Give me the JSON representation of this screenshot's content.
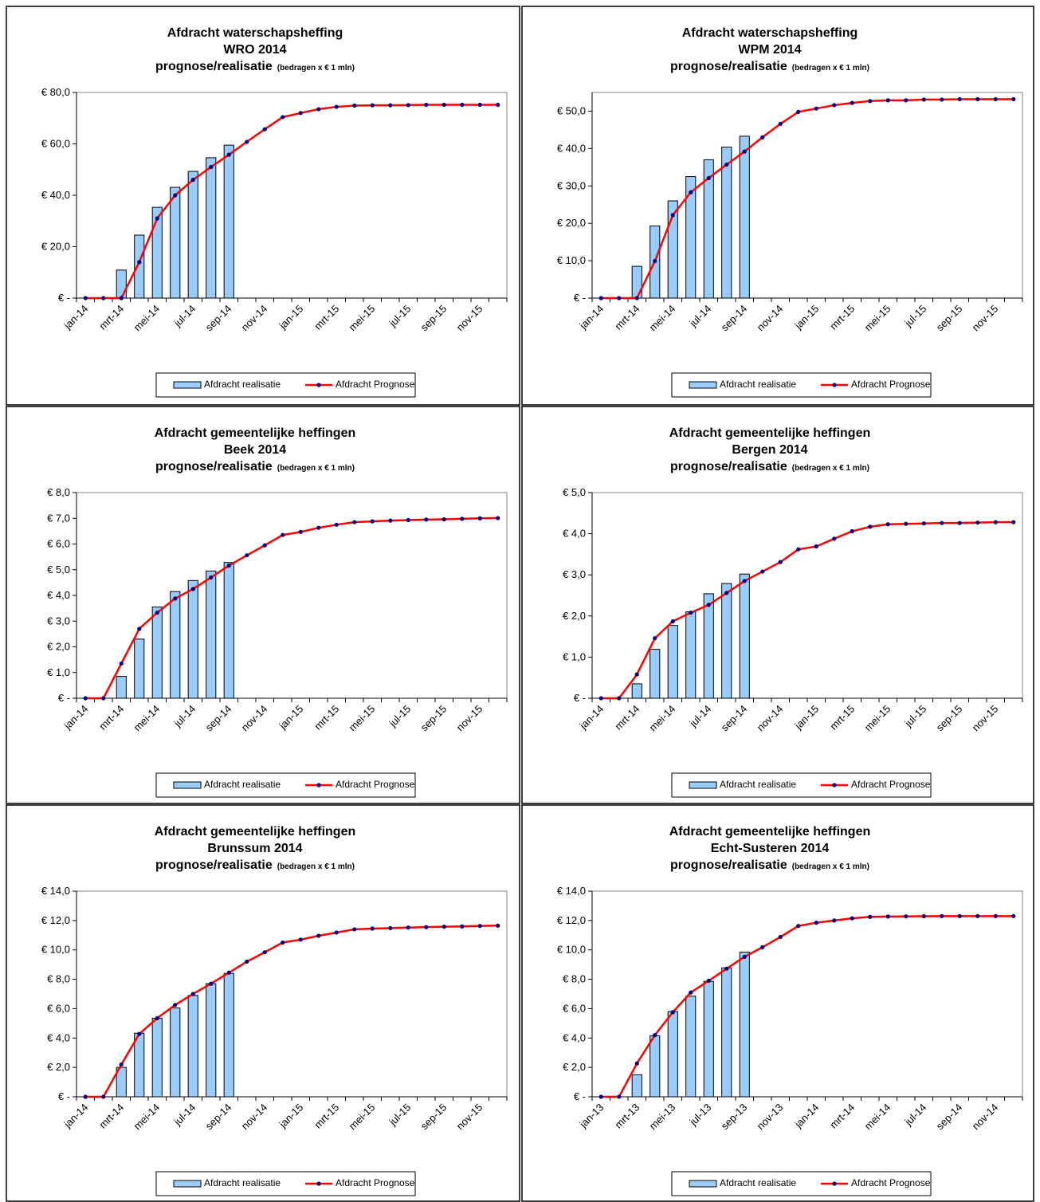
{
  "chart_data": [
    {
      "type": "bar_line",
      "title": [
        "Afdracht waterschapsheffing",
        "WRO 2014",
        "prognose/realisatie"
      ],
      "subtitle": "(bedragen x € 1 mln)",
      "categories": [
        "jan-14",
        null,
        "mrt-14",
        null,
        "mei-14",
        null,
        "jul-14",
        null,
        "sep-14",
        null,
        "nov-14",
        null,
        "jan-15",
        null,
        "mrt-15",
        null,
        "mei-15",
        null,
        "jul-15",
        null,
        "sep-15",
        null,
        "nov-15",
        null
      ],
      "series": [
        {
          "name": "Afdracht realisatie",
          "kind": "bar",
          "color": "#99ccff",
          "values": [
            0,
            0,
            10.9,
            24.5,
            35.3,
            43.1,
            49.3,
            54.6,
            59.5,
            null,
            null,
            null,
            null,
            null,
            null,
            null,
            null,
            null,
            null,
            null,
            null,
            null,
            null,
            null
          ]
        },
        {
          "name": "Afdracht Prognose",
          "kind": "line",
          "color": "#ff0000",
          "marker_color": "#000080",
          "values": [
            0,
            0,
            0,
            14,
            31,
            40,
            46,
            51,
            55.8,
            60.8,
            65.7,
            70.4,
            72,
            73.5,
            74.4,
            74.9,
            75,
            75,
            75.1,
            75.2,
            75.2,
            75.2,
            75.2,
            75.2
          ]
        }
      ],
      "ylim": [
        0,
        80
      ],
      "yticks": [
        {
          "value": 0,
          "label": "€ -"
        },
        {
          "value": 20,
          "label": "€ 20,0"
        },
        {
          "value": 40,
          "label": "€ 40,0"
        },
        {
          "value": 60,
          "label": "€ 60,0"
        },
        {
          "value": 80,
          "label": "€ 80,0"
        }
      ]
    },
    {
      "type": "bar_line",
      "title": [
        "Afdracht waterschapsheffing",
        "WPM 2014",
        "prognose/realisatie"
      ],
      "subtitle": "(bedragen x € 1 mln)",
      "categories": [
        "jan-14",
        null,
        "mrt-14",
        null,
        "mei-14",
        null,
        "jul-14",
        null,
        "sep-14",
        null,
        "nov-14",
        null,
        "jan-15",
        null,
        "mrt-15",
        null,
        "mei-15",
        null,
        "jul-15",
        null,
        "sep-15",
        null,
        "nov-15",
        null
      ],
      "series": [
        {
          "name": "Afdracht realisatie",
          "kind": "bar",
          "color": "#99ccff",
          "values": [
            0,
            0,
            8.5,
            19.3,
            26,
            32.5,
            37,
            40.4,
            43.3,
            null,
            null,
            null,
            null,
            null,
            null,
            null,
            null,
            null,
            null,
            null,
            null,
            null,
            null,
            null
          ]
        },
        {
          "name": "Afdracht Prognose",
          "kind": "line",
          "color": "#ff0000",
          "marker_color": "#000080",
          "values": [
            0,
            0,
            0,
            9.9,
            22.2,
            28.3,
            32.1,
            35.7,
            39.2,
            43,
            46.6,
            49.8,
            50.7,
            51.6,
            52.2,
            52.7,
            52.9,
            52.9,
            53.1,
            53.1,
            53.2,
            53.2,
            53.2,
            53.2
          ]
        }
      ],
      "ylim": [
        0,
        55
      ],
      "yticks": [
        {
          "value": 0,
          "label": "€ -"
        },
        {
          "value": 10,
          "label": "€ 10,0"
        },
        {
          "value": 20,
          "label": "€ 20,0"
        },
        {
          "value": 30,
          "label": "€ 30,0"
        },
        {
          "value": 40,
          "label": "€ 40,0"
        },
        {
          "value": 50,
          "label": "€ 50,0"
        }
      ]
    },
    {
      "type": "bar_line",
      "title": [
        "Afdracht gemeentelijke heffingen",
        "Beek 2014",
        "prognose/realisatie"
      ],
      "subtitle": "(bedragen x € 1 mln)",
      "categories": [
        "jan-14",
        null,
        "mrt-14",
        null,
        "mei-14",
        null,
        "jul-14",
        null,
        "sep-14",
        null,
        "nov-14",
        null,
        "jan-15",
        null,
        "mrt-15",
        null,
        "mei-15",
        null,
        "jul-15",
        null,
        "sep-15",
        null,
        "nov-15",
        null
      ],
      "series": [
        {
          "name": "Afdracht realisatie",
          "kind": "bar",
          "color": "#99ccff",
          "values": [
            0,
            0,
            0.85,
            2.3,
            3.55,
            4.15,
            4.58,
            4.95,
            5.28,
            null,
            null,
            null,
            null,
            null,
            null,
            null,
            null,
            null,
            null,
            null,
            null,
            null,
            null,
            null
          ]
        },
        {
          "name": "Afdracht Prognose",
          "kind": "line",
          "color": "#ff0000",
          "marker_color": "#000080",
          "values": [
            0,
            0,
            1.35,
            2.7,
            3.33,
            3.88,
            4.25,
            4.7,
            5.16,
            5.56,
            5.95,
            6.35,
            6.47,
            6.63,
            6.75,
            6.85,
            6.88,
            6.91,
            6.93,
            6.95,
            6.96,
            6.98,
            7,
            7.01
          ]
        }
      ],
      "ylim": [
        0,
        8
      ],
      "yticks": [
        {
          "value": 0,
          "label": "€ -"
        },
        {
          "value": 1,
          "label": "€ 1,0"
        },
        {
          "value": 2,
          "label": "€ 2,0"
        },
        {
          "value": 3,
          "label": "€ 3,0"
        },
        {
          "value": 4,
          "label": "€ 4,0"
        },
        {
          "value": 5,
          "label": "€ 5,0"
        },
        {
          "value": 6,
          "label": "€ 6,0"
        },
        {
          "value": 7,
          "label": "€ 7,0"
        },
        {
          "value": 8,
          "label": "€ 8,0"
        }
      ]
    },
    {
      "type": "bar_line",
      "title": [
        "Afdracht gemeentelijke heffingen",
        "Bergen 2014",
        "prognose/realisatie"
      ],
      "subtitle": "(bedragen x € 1 mln)",
      "categories": [
        "jan-14",
        null,
        "mrt-14",
        null,
        "mei-14",
        null,
        "jul-14",
        null,
        "sep-14",
        null,
        "nov-14",
        null,
        "jan-15",
        null,
        "mrt-15",
        null,
        "mei-15",
        null,
        "jul-15",
        null,
        "sep-15",
        null,
        "nov-15",
        null
      ],
      "series": [
        {
          "name": "Afdracht realisatie",
          "kind": "bar",
          "color": "#99ccff",
          "values": [
            0,
            0,
            0.35,
            1.19,
            1.77,
            2.1,
            2.54,
            2.79,
            3.02,
            null,
            null,
            null,
            null,
            null,
            null,
            null,
            null,
            null,
            null,
            null,
            null,
            null,
            null,
            null
          ]
        },
        {
          "name": "Afdracht Prognose",
          "kind": "line",
          "color": "#ff0000",
          "marker_color": "#000080",
          "values": [
            0,
            0,
            0.58,
            1.46,
            1.87,
            2.08,
            2.27,
            2.56,
            2.85,
            3.08,
            3.31,
            3.62,
            3.69,
            3.88,
            4.06,
            4.17,
            4.23,
            4.24,
            4.25,
            4.26,
            4.26,
            4.27,
            4.28,
            4.28
          ]
        }
      ],
      "ylim": [
        0,
        5
      ],
      "yticks": [
        {
          "value": 0,
          "label": "€ -"
        },
        {
          "value": 1,
          "label": "€ 1,0"
        },
        {
          "value": 2,
          "label": "€ 2,0"
        },
        {
          "value": 3,
          "label": "€ 3,0"
        },
        {
          "value": 4,
          "label": "€ 4,0"
        },
        {
          "value": 5,
          "label": "€ 5,0"
        }
      ]
    },
    {
      "type": "bar_line",
      "title": [
        "Afdracht gemeentelijke heffingen",
        "Brunssum 2014",
        "prognose/realisatie"
      ],
      "subtitle": "(bedragen x € 1 mln)",
      "categories": [
        "jan-14",
        null,
        "mrt-14",
        null,
        "mei-14",
        null,
        "jul-14",
        null,
        "sep-14",
        null,
        "nov-14",
        null,
        "jan-15",
        null,
        "mrt-15",
        null,
        "mei-15",
        null,
        "jul-15",
        null,
        "sep-15",
        null,
        "nov-15",
        null
      ],
      "series": [
        {
          "name": "Afdracht realisatie",
          "kind": "bar",
          "color": "#99ccff",
          "values": [
            0,
            0,
            2,
            4.33,
            5.35,
            6.05,
            6.9,
            7.7,
            8.4,
            null,
            null,
            null,
            null,
            null,
            null,
            null,
            null,
            null,
            null,
            null,
            null,
            null,
            null,
            null
          ]
        },
        {
          "name": "Afdracht Prognose",
          "kind": "line",
          "color": "#ff0000",
          "marker_color": "#000080",
          "values": [
            0,
            0,
            2.2,
            4.28,
            5.35,
            6.25,
            7,
            7.7,
            8.45,
            9.2,
            9.84,
            10.5,
            10.7,
            10.96,
            11.18,
            11.4,
            11.45,
            11.48,
            11.52,
            11.55,
            11.58,
            11.6,
            11.63,
            11.65
          ]
        }
      ],
      "ylim": [
        0,
        14
      ],
      "yticks": [
        {
          "value": 0,
          "label": "€ -"
        },
        {
          "value": 2,
          "label": "€ 2,0"
        },
        {
          "value": 4,
          "label": "€ 4,0"
        },
        {
          "value": 6,
          "label": "€ 6,0"
        },
        {
          "value": 8,
          "label": "€ 8,0"
        },
        {
          "value": 10,
          "label": "€ 10,0"
        },
        {
          "value": 12,
          "label": "€ 12,0"
        },
        {
          "value": 14,
          "label": "€ 14,0"
        }
      ]
    },
    {
      "type": "bar_line",
      "title": [
        "Afdracht gemeentelijke heffingen",
        "Echt-Susteren 2014",
        "prognose/realisatie"
      ],
      "subtitle": "(bedragen x € 1 mln)",
      "categories": [
        "jan-13",
        null,
        "mrt-13",
        null,
        "mei-13",
        null,
        "jul-13",
        null,
        "sep-13",
        null,
        "nov-13",
        null,
        "jan-14",
        null,
        "mrt-14",
        null,
        "mei-14",
        null,
        "jul-14",
        null,
        "sep-14",
        null,
        "nov-14",
        null
      ],
      "series": [
        {
          "name": "Afdracht realisatie",
          "kind": "bar",
          "color": "#99ccff",
          "values": [
            0,
            0,
            1.5,
            4.15,
            5.8,
            6.85,
            7.86,
            8.78,
            9.85,
            null,
            null,
            null,
            null,
            null,
            null,
            null,
            null,
            null,
            null,
            null,
            null,
            null,
            null,
            null
          ]
        },
        {
          "name": "Afdracht Prognose",
          "kind": "line",
          "color": "#ff0000",
          "marker_color": "#000080",
          "values": [
            0,
            0,
            2.27,
            4.2,
            5.76,
            7.1,
            7.9,
            8.72,
            9.53,
            10.18,
            10.88,
            11.63,
            11.85,
            12,
            12.15,
            12.25,
            12.27,
            12.28,
            12.29,
            12.3,
            12.3,
            12.3,
            12.3,
            12.3
          ]
        }
      ],
      "ylim": [
        0,
        14
      ],
      "yticks": [
        {
          "value": 0,
          "label": "€ -"
        },
        {
          "value": 2,
          "label": "€ 2,0"
        },
        {
          "value": 4,
          "label": "€ 4,0"
        },
        {
          "value": 6,
          "label": "€ 6,0"
        },
        {
          "value": 8,
          "label": "€ 8,0"
        },
        {
          "value": 10,
          "label": "€ 10,0"
        },
        {
          "value": 12,
          "label": "€ 12,0"
        },
        {
          "value": 14,
          "label": "€ 14,0"
        }
      ]
    }
  ]
}
